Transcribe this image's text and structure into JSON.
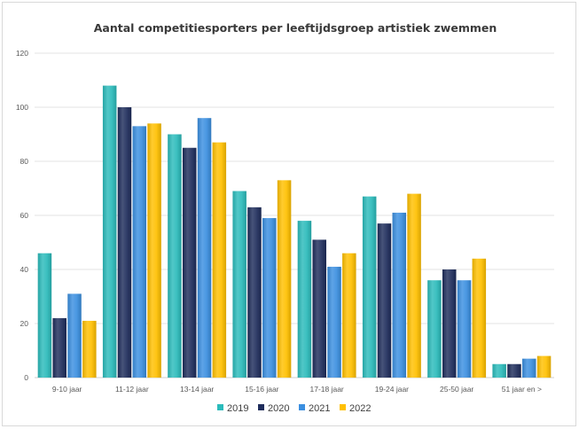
{
  "chart_data": {
    "type": "bar",
    "title": "Aantal competitiesporters per leeftijdsgroep artistiek zwemmen",
    "xlabel": "",
    "ylabel": "",
    "ylim": [
      0,
      120
    ],
    "yticks": [
      "0",
      "20",
      "40",
      "60",
      "80",
      "100",
      "120"
    ],
    "grid": true,
    "legend_position": "bottom",
    "categories": [
      "9-10 jaar",
      "11-12 jaar",
      "13-14 jaar",
      "15-16 jaar",
      "17-18 jaar",
      "19-24 jaar",
      "25-50 jaar",
      "51 jaar en >"
    ],
    "series": [
      {
        "name": "2019",
        "color": "#2bbbbb",
        "values": [
          46,
          108,
          90,
          69,
          58,
          67,
          36,
          5
        ]
      },
      {
        "name": "2020",
        "color": "#1f2d5c",
        "values": [
          22,
          100,
          85,
          63,
          51,
          57,
          40,
          5
        ]
      },
      {
        "name": "2021",
        "color": "#3b8fe0",
        "values": [
          31,
          93,
          96,
          59,
          41,
          61,
          36,
          7
        ]
      },
      {
        "name": "2022",
        "color": "#ffc000",
        "values": [
          21,
          94,
          87,
          73,
          46,
          68,
          44,
          8
        ]
      }
    ]
  }
}
